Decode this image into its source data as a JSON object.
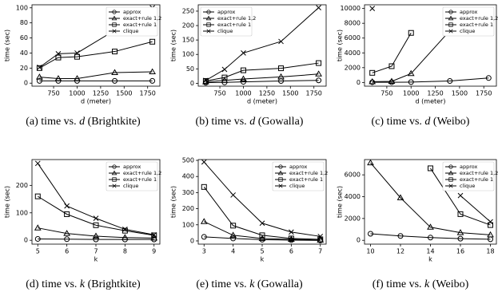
{
  "chart_data": [
    {
      "type": "line",
      "caption": [
        "(a) time vs.",
        "d",
        "(Brightkite)"
      ],
      "xlabel": "d (meter)",
      "ylabel": "time (sec)",
      "x": [
        600,
        800,
        1000,
        1400,
        1800
      ],
      "xlim": [
        520,
        1880
      ],
      "xticks": [
        750,
        1000,
        1250,
        1500,
        1750
      ],
      "ylim": [
        -4,
        104
      ],
      "yticks": [
        0,
        20,
        40,
        60,
        80,
        100
      ],
      "legend": "upper right",
      "series": [
        {
          "name": "approx",
          "color": "#000000",
          "marker": "o",
          "values": [
            3,
            3,
            3,
            3,
            3
          ]
        },
        {
          "name": "exact+rule 1,2",
          "color": "#000000",
          "marker": "^",
          "values": [
            8,
            6,
            6,
            14,
            15
          ]
        },
        {
          "name": "exact+rule 1",
          "color": "#000000",
          "marker": "s",
          "values": [
            20,
            34,
            35,
            42,
            55
          ]
        },
        {
          "name": "clique",
          "color": "#000000",
          "marker": "x",
          "values": [
            21,
            39,
            40,
            70,
            100
          ]
        }
      ]
    },
    {
      "type": "line",
      "caption": [
        "(b) time vs.",
        "d",
        "(Gowalla)"
      ],
      "xlabel": "d (meter)",
      "ylabel": "time (sec)",
      "x": [
        600,
        800,
        1000,
        1400,
        1800
      ],
      "xlim": [
        520,
        1880
      ],
      "xticks": [
        750,
        1000,
        1250,
        1500,
        1750
      ],
      "ylim": [
        -10,
        272
      ],
      "yticks": [
        0,
        50,
        100,
        150,
        200,
        250
      ],
      "legend": "upper left",
      "series": [
        {
          "name": "approx",
          "color": "#000000",
          "marker": "o",
          "values": [
            2,
            3,
            5,
            8,
            10
          ]
        },
        {
          "name": "exact+rule 1,2",
          "color": "#000000",
          "marker": "^",
          "values": [
            5,
            10,
            15,
            22,
            32
          ]
        },
        {
          "name": "exact+rule 1",
          "color": "#000000",
          "marker": "s",
          "values": [
            8,
            20,
            45,
            52,
            70
          ]
        },
        {
          "name": "clique",
          "color": "#000000",
          "marker": "x",
          "values": [
            10,
            48,
            105,
            145,
            262
          ]
        }
      ]
    },
    {
      "type": "line",
      "caption": [
        "(c) time vs.",
        "d",
        "(Weibo)"
      ],
      "xlabel": "d (meter)",
      "ylabel": "time (sec)",
      "x": [
        600,
        800,
        1000,
        1400,
        1800
      ],
      "xlim": [
        520,
        1880
      ],
      "xticks": [
        750,
        1000,
        1250,
        1500,
        1750
      ],
      "ylim": [
        -500,
        10500
      ],
      "yticks": [
        0,
        2000,
        4000,
        6000,
        8000,
        10000
      ],
      "legend": "upper right",
      "series": [
        {
          "name": "approx",
          "color": "#000000",
          "marker": "o",
          "values": [
            30,
            30,
            50,
            200,
            600
          ]
        },
        {
          "name": "exact+rule 1,2",
          "color": "#000000",
          "marker": "^",
          "values": [
            100,
            150,
            1200,
            7000,
            null
          ]
        },
        {
          "name": "exact+rule 1",
          "color": "#000000",
          "marker": "s",
          "values": [
            1300,
            2200,
            6700,
            null,
            null
          ]
        },
        {
          "name": "clique",
          "color": "#000000",
          "marker": "x",
          "values": [
            10000,
            null,
            null,
            null,
            null
          ]
        }
      ]
    },
    {
      "type": "line",
      "caption": [
        "(d) time vs.",
        "k",
        "(Brightkite)"
      ],
      "xlabel": "k",
      "ylabel": "time (sec)",
      "x": [
        5,
        6,
        7,
        8,
        9
      ],
      "xlim": [
        4.8,
        9.2
      ],
      "xticks": [
        5,
        6,
        7,
        8,
        9
      ],
      "ylim": [
        -14,
        294
      ],
      "yticks": [
        0,
        100,
        200
      ],
      "legend": "upper right",
      "series": [
        {
          "name": "approx",
          "color": "#000000",
          "marker": "o",
          "values": [
            5,
            4,
            3,
            3,
            3
          ]
        },
        {
          "name": "exact+rule 1,2",
          "color": "#000000",
          "marker": "^",
          "values": [
            45,
            25,
            15,
            10,
            8
          ]
        },
        {
          "name": "exact+rule 1",
          "color": "#000000",
          "marker": "s",
          "values": [
            160,
            95,
            55,
            35,
            18
          ]
        },
        {
          "name": "clique",
          "color": "#000000",
          "marker": "x",
          "values": [
            280,
            125,
            80,
            40,
            20
          ]
        }
      ]
    },
    {
      "type": "line",
      "caption": [
        "(e) time vs.",
        "k",
        "(Gowalla)"
      ],
      "xlabel": "k",
      "ylabel": "time (sec)",
      "x": [
        3,
        4,
        5,
        6,
        7
      ],
      "xlim": [
        2.8,
        7.2
      ],
      "xticks": [
        3,
        4,
        5,
        6,
        7
      ],
      "ylim": [
        -20,
        505
      ],
      "yticks": [
        0,
        100,
        200,
        300,
        400,
        500
      ],
      "legend": "upper right",
      "series": [
        {
          "name": "approx",
          "color": "#000000",
          "marker": "o",
          "values": [
            25,
            15,
            8,
            5,
            3
          ]
        },
        {
          "name": "exact+rule 1,2",
          "color": "#000000",
          "marker": "^",
          "values": [
            120,
            35,
            15,
            10,
            5
          ]
        },
        {
          "name": "exact+rule 1",
          "color": "#000000",
          "marker": "s",
          "values": [
            335,
            95,
            35,
            15,
            10
          ]
        },
        {
          "name": "clique",
          "color": "#000000",
          "marker": "x",
          "values": [
            490,
            285,
            110,
            55,
            28
          ]
        }
      ]
    },
    {
      "type": "line",
      "caption": [
        "(f) time vs.",
        "k",
        "(Weibo)"
      ],
      "xlabel": "k",
      "ylabel": "time (sec)",
      "x": [
        10,
        12,
        14,
        16,
        18
      ],
      "xlim": [
        9.6,
        18.4
      ],
      "xticks": [
        10,
        12,
        14,
        16,
        18
      ],
      "ylim": [
        -350,
        7400
      ],
      "yticks": [
        0,
        2000,
        4000,
        6000
      ],
      "legend": "upper right",
      "series": [
        {
          "name": "approx",
          "color": "#000000",
          "marker": "o",
          "values": [
            600,
            400,
            250,
            150,
            100
          ]
        },
        {
          "name": "exact+rule 1,2",
          "color": "#000000",
          "marker": "^",
          "values": [
            7100,
            3900,
            1200,
            700,
            500
          ]
        },
        {
          "name": "exact+rule 1",
          "color": "#000000",
          "marker": "s",
          "values": [
            null,
            null,
            6600,
            2400,
            1400
          ]
        },
        {
          "name": "clique",
          "color": "#000000",
          "marker": "x",
          "values": [
            null,
            null,
            null,
            4100,
            1700
          ]
        }
      ]
    }
  ]
}
